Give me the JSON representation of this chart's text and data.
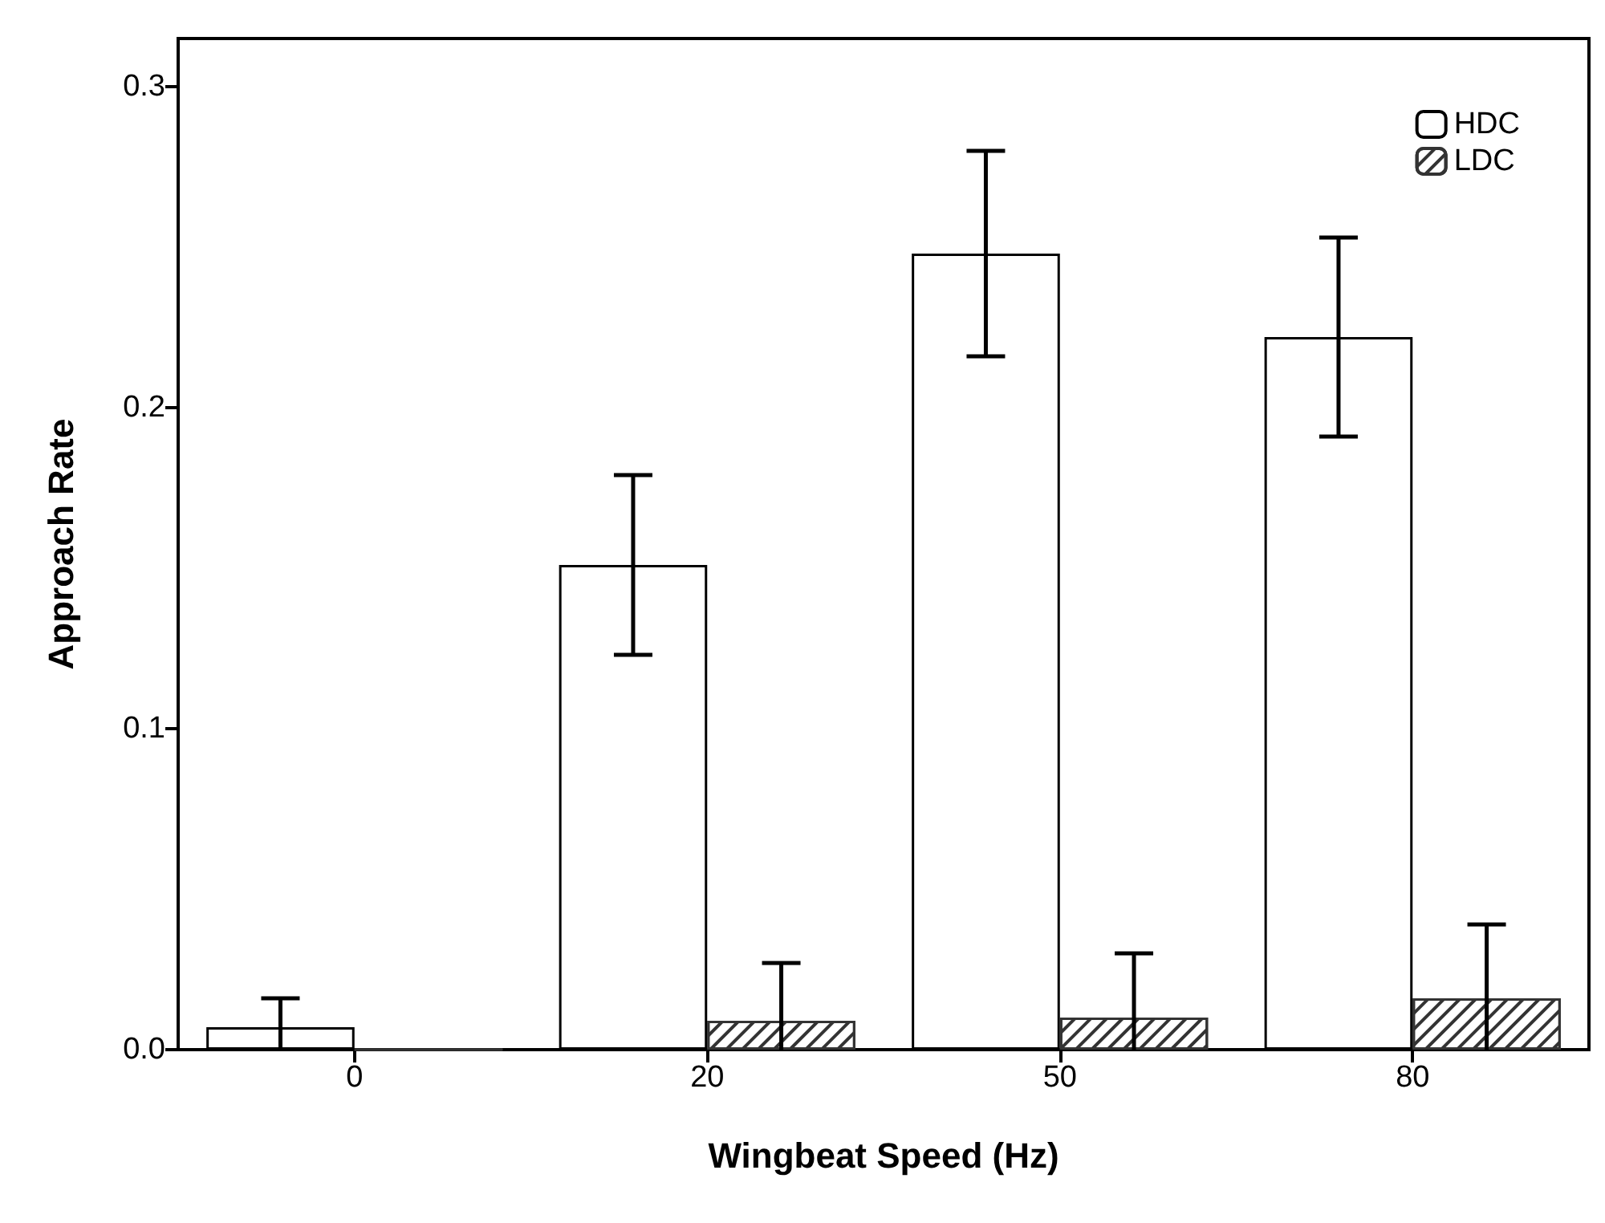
{
  "chart_data": {
    "type": "bar",
    "xlabel": "Wingbeat Speed (Hz)",
    "ylabel": "Approach Rate",
    "categories": [
      "0",
      "20",
      "50",
      "80"
    ],
    "series": [
      {
        "name": "HDC",
        "color": "#ffffff",
        "values": [
          0.007,
          0.151,
          0.248,
          0.222
        ],
        "errors": [
          0.009,
          0.028,
          0.032,
          0.031
        ]
      },
      {
        "name": "LDC",
        "color": "#333333",
        "values": [
          0,
          0.009,
          0.01,
          0.016
        ],
        "errors": [
          null,
          0.018,
          0.02,
          0.023
        ]
      }
    ],
    "ylim": [
      0,
      0.315
    ],
    "yticks": [
      {
        "value": 0,
        "label": "0.0"
      },
      {
        "value": 0.1,
        "label": "0.1"
      },
      {
        "value": 0.2,
        "label": "0.2"
      },
      {
        "value": 0.3,
        "label": "0.3"
      }
    ],
    "grid": false,
    "legend": "top right"
  }
}
